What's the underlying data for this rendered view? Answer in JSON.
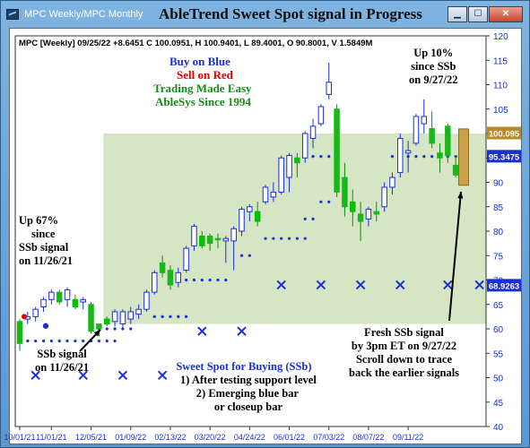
{
  "window": {
    "tab_title": "MPC Weekly/MPC Monthly",
    "overlay_title": "AbleTrend Sweet Spot signal in Progress",
    "min_label": "▁",
    "max_label": "☐",
    "close_label": "✕"
  },
  "chart": {
    "info_line": "MPC [Weekly] 09/25/22 +8.6451 C 100.0951, H 100.9401, L 89.4001, O 90.8001, V 1.5849M",
    "legend": {
      "buy": "Buy on Blue",
      "sell": "Sell on Red",
      "tagline": "Trading Made Easy",
      "brand": "AbleSys Since 1994"
    },
    "annotations": {
      "up10": [
        "Up 10%",
        "since SSb",
        "on 9/27/22"
      ],
      "up67": [
        "Up 67%",
        "since",
        "SSb signal",
        "on 11/26/21"
      ],
      "ssb_signal": [
        "SSb signal",
        "on 11/26/21"
      ],
      "sweet_spot": [
        "Sweet Spot for Buying (SSb)",
        "1) After testing support level",
        "2) Emerging blue bar",
        "or closeup bar"
      ],
      "fresh": [
        "Fresh SSb signal",
        "by 3pm ET on 9/27/22",
        "Scroll down to trace",
        "back the earlier signals"
      ]
    },
    "price_tags": {
      "top": "100.095",
      "mid": "95.3475",
      "low": "68.9263"
    },
    "colors": {
      "blue": "#1a2fd6",
      "red": "#e00000",
      "green": "#1a9a1a",
      "cyan": "#00c000",
      "zone": "#cfe0b8",
      "current_bar": "#c9a24a"
    }
  },
  "chart_data": {
    "type": "candlestick",
    "y_axis": {
      "min": 40,
      "max": 120,
      "ticks": [
        40,
        45,
        50,
        55,
        60,
        65,
        70,
        75,
        80,
        85,
        90,
        95,
        100,
        105,
        110,
        115,
        120
      ]
    },
    "x_ticks": [
      "10/01/21",
      "11/01/21",
      "12/05/21",
      "01/09/22",
      "02/13/22",
      "03/20/22",
      "04/24/22",
      "06/01/22",
      "07/03/22",
      "08/07/22",
      "09/11/22"
    ],
    "grid": false,
    "bars": [
      {
        "o": 57,
        "h": 62,
        "l": 55.5,
        "c": 61.5,
        "color": "green"
      },
      {
        "o": 62,
        "h": 63.5,
        "l": 61,
        "c": 62.5,
        "color": "blue"
      },
      {
        "o": 62.5,
        "h": 64.5,
        "l": 61.5,
        "c": 64,
        "color": "blue"
      },
      {
        "o": 64.5,
        "h": 66.5,
        "l": 63.5,
        "c": 66,
        "color": "blue"
      },
      {
        "o": 66,
        "h": 68,
        "l": 65,
        "c": 67.5,
        "color": "blue"
      },
      {
        "o": 67.5,
        "h": 68,
        "l": 65,
        "c": 65.5,
        "color": "green"
      },
      {
        "o": 66,
        "h": 68.5,
        "l": 64.5,
        "c": 68,
        "color": "blue"
      },
      {
        "o": 66,
        "h": 67,
        "l": 64,
        "c": 64.5,
        "color": "cyan"
      },
      {
        "o": 65.5,
        "h": 66.5,
        "l": 64,
        "c": 66,
        "color": "blue"
      },
      {
        "o": 65,
        "h": 65.5,
        "l": 59,
        "c": 59.5,
        "color": "green"
      },
      {
        "o": 60,
        "h": 61,
        "l": 58.5,
        "c": 61,
        "color": "green"
      },
      {
        "o": 61,
        "h": 62.5,
        "l": 60.5,
        "c": 62,
        "color": "cyan"
      },
      {
        "o": 61.5,
        "h": 64,
        "l": 60.5,
        "c": 63.5,
        "color": "blue"
      },
      {
        "o": 61,
        "h": 64,
        "l": 60,
        "c": 63.5,
        "color": "blue"
      },
      {
        "o": 62,
        "h": 64.5,
        "l": 61,
        "c": 63.5,
        "color": "blue"
      },
      {
        "o": 63,
        "h": 65,
        "l": 62,
        "c": 64,
        "color": "blue"
      },
      {
        "o": 64,
        "h": 68,
        "l": 63.5,
        "c": 67.5,
        "color": "blue"
      },
      {
        "o": 67.5,
        "h": 72,
        "l": 67,
        "c": 71.5,
        "color": "blue"
      },
      {
        "o": 71.5,
        "h": 75,
        "l": 70.5,
        "c": 73.5,
        "color": "green"
      },
      {
        "o": 72,
        "h": 73,
        "l": 68,
        "c": 69,
        "color": "green"
      },
      {
        "o": 69.5,
        "h": 72.5,
        "l": 68.5,
        "c": 71.5,
        "color": "blue"
      },
      {
        "o": 72,
        "h": 77,
        "l": 71.5,
        "c": 76.5,
        "color": "blue"
      },
      {
        "o": 77,
        "h": 81.5,
        "l": 76,
        "c": 81,
        "color": "blue"
      },
      {
        "o": 79,
        "h": 80,
        "l": 76.5,
        "c": 77,
        "color": "cyan"
      },
      {
        "o": 77.5,
        "h": 79.5,
        "l": 76,
        "c": 79,
        "color": "green"
      },
      {
        "o": 78.5,
        "h": 79.5,
        "l": 76.5,
        "c": 78.5,
        "color": "green"
      },
      {
        "o": 78,
        "h": 79,
        "l": 73.5,
        "c": 78.5,
        "color": "blue"
      },
      {
        "o": 78,
        "h": 81,
        "l": 72,
        "c": 80.5,
        "color": "blue"
      },
      {
        "o": 80,
        "h": 85,
        "l": 79,
        "c": 84.5,
        "color": "blue"
      },
      {
        "o": 84,
        "h": 85.5,
        "l": 82,
        "c": 85,
        "color": "blue"
      },
      {
        "o": 84,
        "h": 86,
        "l": 81,
        "c": 82,
        "color": "cyan"
      },
      {
        "o": 86,
        "h": 89.5,
        "l": 85.5,
        "c": 89,
        "color": "blue"
      },
      {
        "o": 87,
        "h": 90,
        "l": 86,
        "c": 88,
        "color": "blue"
      },
      {
        "o": 88,
        "h": 95.5,
        "l": 87.5,
        "c": 95,
        "color": "blue"
      },
      {
        "o": 91,
        "h": 96,
        "l": 88,
        "c": 95.5,
        "color": "blue"
      },
      {
        "o": 94,
        "h": 96,
        "l": 91,
        "c": 95,
        "color": "green"
      },
      {
        "o": 95,
        "h": 100.5,
        "l": 94,
        "c": 100,
        "color": "blue"
      },
      {
        "o": 99,
        "h": 103,
        "l": 97,
        "c": 101.5,
        "color": "blue"
      },
      {
        "o": 102,
        "h": 106,
        "l": 101.5,
        "c": 105.5,
        "color": "blue"
      },
      {
        "o": 108,
        "h": 114.5,
        "l": 107,
        "c": 110.5,
        "color": "blue"
      },
      {
        "o": 105,
        "h": 106,
        "l": 87,
        "c": 88,
        "color": "green"
      },
      {
        "o": 91,
        "h": 94,
        "l": 83,
        "c": 85,
        "color": "green"
      },
      {
        "o": 86,
        "h": 88.5,
        "l": 81,
        "c": 84,
        "color": "cyan"
      },
      {
        "o": 83.5,
        "h": 86,
        "l": 78,
        "c": 82,
        "color": "green"
      },
      {
        "o": 82.5,
        "h": 85,
        "l": 81,
        "c": 84.5,
        "color": "blue"
      },
      {
        "o": 84,
        "h": 86,
        "l": 82,
        "c": 83.5,
        "color": "green"
      },
      {
        "o": 85,
        "h": 90,
        "l": 84,
        "c": 89,
        "color": "blue"
      },
      {
        "o": 89,
        "h": 92,
        "l": 87.5,
        "c": 91,
        "color": "blue"
      },
      {
        "o": 92,
        "h": 100,
        "l": 91,
        "c": 99,
        "color": "blue"
      },
      {
        "o": 96,
        "h": 98.5,
        "l": 92,
        "c": 96.5,
        "color": "blue"
      },
      {
        "o": 98,
        "h": 104,
        "l": 97.5,
        "c": 103.5,
        "color": "blue"
      },
      {
        "o": 103.5,
        "h": 107,
        "l": 100,
        "c": 102,
        "color": "blue"
      },
      {
        "o": 101,
        "h": 104.5,
        "l": 97,
        "c": 98,
        "color": "green"
      },
      {
        "o": 96,
        "h": 98,
        "l": 92,
        "c": 95,
        "color": "cyan"
      },
      {
        "o": 101.5,
        "h": 102,
        "l": 94,
        "c": 95.5,
        "color": "green"
      },
      {
        "o": 93.5,
        "h": 95.5,
        "l": 91,
        "c": 91.5,
        "color": "green"
      },
      {
        "o": 90.8,
        "h": 100.94,
        "l": 89.4,
        "c": 100.095,
        "color": "current"
      }
    ],
    "support_dots": [
      {
        "from": 1,
        "to": 12,
        "y": 57.5
      },
      {
        "from": 9,
        "to": 14,
        "y": 60
      },
      {
        "from": 17,
        "to": 21,
        "y": 62.5
      },
      {
        "from": 21,
        "to": 26,
        "y": 70
      },
      {
        "from": 28,
        "to": 29,
        "y": 75
      },
      {
        "from": 31,
        "to": 36,
        "y": 78.5
      },
      {
        "from": 36,
        "to": 37,
        "y": 82.5
      },
      {
        "from": 38,
        "to": 39,
        "y": 86
      },
      {
        "from": 37,
        "to": 39,
        "y": 95.3
      },
      {
        "from": 47,
        "to": 55,
        "y": 95.3
      }
    ],
    "x_marks": [
      {
        "i": 2,
        "y": 50.5
      },
      {
        "i": 8,
        "y": 50.5
      },
      {
        "i": 13,
        "y": 50.5
      },
      {
        "i": 18,
        "y": 50.5
      },
      {
        "i": 23,
        "y": 59.5
      },
      {
        "i": 28,
        "y": 59.5
      },
      {
        "i": 33,
        "y": 69
      },
      {
        "i": 38,
        "y": 69
      },
      {
        "i": 43,
        "y": 69
      },
      {
        "i": 48,
        "y": 69
      },
      {
        "i": 54,
        "y": 69
      },
      {
        "i": 58,
        "y": 69
      }
    ],
    "zone": {
      "from_bar": 11,
      "y_low": 61,
      "y_high": 100
    }
  }
}
